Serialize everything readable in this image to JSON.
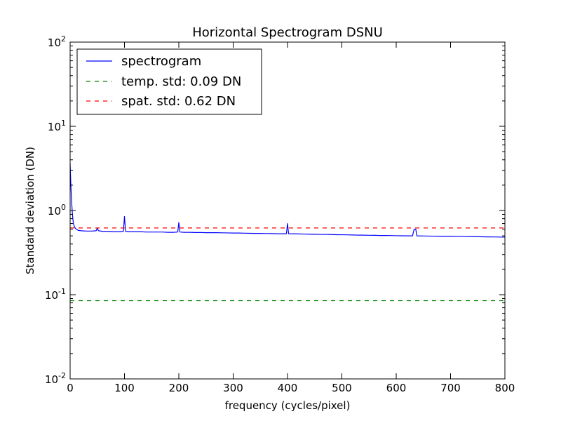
{
  "chart_data": {
    "type": "line",
    "title": "Horizontal Spectrogram DSNU",
    "xlabel": "frequency (cycles/pixel)",
    "ylabel": "Standard deviation (DN)",
    "xlim": [
      0,
      800
    ],
    "ylim": [
      0.01,
      100
    ],
    "yscale": "log",
    "grid": false,
    "legend_position": "top-left",
    "x_ticks": [
      "0",
      "100",
      "200",
      "300",
      "400",
      "500",
      "600",
      "700",
      "800"
    ],
    "y_ticks": [
      {
        "base": "10",
        "exp": "-2"
      },
      {
        "base": "10",
        "exp": "-1"
      },
      {
        "base": "10",
        "exp": "0"
      },
      {
        "base": "10",
        "exp": "1"
      },
      {
        "base": "10",
        "exp": "2"
      }
    ],
    "series": [
      {
        "name": "spectrogram",
        "style": "solid",
        "color": "#0000ff",
        "points": [
          [
            0,
            3.6
          ],
          [
            1,
            2.3
          ],
          [
            2,
            1.6
          ],
          [
            3,
            1.2
          ],
          [
            4,
            0.95
          ],
          [
            5,
            0.8
          ],
          [
            6,
            0.7
          ],
          [
            8,
            0.64
          ],
          [
            10,
            0.61
          ],
          [
            15,
            0.58
          ],
          [
            20,
            0.575
          ],
          [
            30,
            0.57
          ],
          [
            40,
            0.57
          ],
          [
            48,
            0.575
          ],
          [
            50,
            0.62
          ],
          [
            52,
            0.575
          ],
          [
            60,
            0.565
          ],
          [
            70,
            0.565
          ],
          [
            80,
            0.56
          ],
          [
            90,
            0.56
          ],
          [
            98,
            0.565
          ],
          [
            100,
            0.85
          ],
          [
            102,
            0.565
          ],
          [
            110,
            0.56
          ],
          [
            120,
            0.56
          ],
          [
            130,
            0.56
          ],
          [
            140,
            0.555
          ],
          [
            150,
            0.555
          ],
          [
            160,
            0.555
          ],
          [
            170,
            0.555
          ],
          [
            180,
            0.55
          ],
          [
            190,
            0.55
          ],
          [
            198,
            0.555
          ],
          [
            200,
            0.72
          ],
          [
            202,
            0.555
          ],
          [
            210,
            0.55
          ],
          [
            220,
            0.55
          ],
          [
            230,
            0.548
          ],
          [
            240,
            0.548
          ],
          [
            250,
            0.545
          ],
          [
            260,
            0.545
          ],
          [
            270,
            0.545
          ],
          [
            280,
            0.543
          ],
          [
            290,
            0.542
          ],
          [
            300,
            0.54
          ],
          [
            310,
            0.54
          ],
          [
            320,
            0.538
          ],
          [
            330,
            0.536
          ],
          [
            340,
            0.535
          ],
          [
            350,
            0.535
          ],
          [
            360,
            0.533
          ],
          [
            370,
            0.532
          ],
          [
            380,
            0.53
          ],
          [
            390,
            0.53
          ],
          [
            398,
            0.53
          ],
          [
            400,
            0.7
          ],
          [
            402,
            0.53
          ],
          [
            410,
            0.528
          ],
          [
            420,
            0.527
          ],
          [
            430,
            0.525
          ],
          [
            440,
            0.523
          ],
          [
            450,
            0.522
          ],
          [
            460,
            0.52
          ],
          [
            470,
            0.52
          ],
          [
            480,
            0.518
          ],
          [
            490,
            0.516
          ],
          [
            500,
            0.515
          ],
          [
            510,
            0.514
          ],
          [
            520,
            0.512
          ],
          [
            530,
            0.51
          ],
          [
            540,
            0.51
          ],
          [
            550,
            0.508
          ],
          [
            560,
            0.507
          ],
          [
            570,
            0.505
          ],
          [
            580,
            0.505
          ],
          [
            590,
            0.504
          ],
          [
            600,
            0.502
          ],
          [
            610,
            0.501
          ],
          [
            620,
            0.5
          ],
          [
            630,
            0.5
          ],
          [
            633,
            0.6
          ],
          [
            636,
            0.6
          ],
          [
            638,
            0.5
          ],
          [
            650,
            0.498
          ],
          [
            660,
            0.497
          ],
          [
            670,
            0.496
          ],
          [
            680,
            0.495
          ],
          [
            690,
            0.494
          ],
          [
            700,
            0.493
          ],
          [
            710,
            0.492
          ],
          [
            720,
            0.491
          ],
          [
            730,
            0.49
          ],
          [
            740,
            0.489
          ],
          [
            750,
            0.488
          ],
          [
            760,
            0.487
          ],
          [
            770,
            0.486
          ],
          [
            780,
            0.485
          ],
          [
            790,
            0.484
          ],
          [
            800,
            0.483
          ]
        ]
      },
      {
        "name": "temp. std: 0.09 DN",
        "style": "dashed",
        "color": "#008000",
        "constant": 0.085
      },
      {
        "name": "spat. std: 0.62 DN",
        "style": "dashed",
        "color": "#ff0000",
        "constant": 0.62
      }
    ]
  }
}
